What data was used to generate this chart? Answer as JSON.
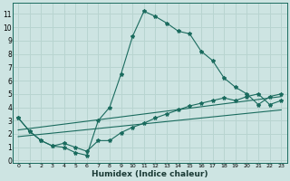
{
  "xlabel": "Humidex (Indice chaleur)",
  "bg_color": "#cde4e2",
  "grid_color": "#b8d4d0",
  "line_color": "#1a6b5e",
  "x_ticks": [
    0,
    1,
    2,
    3,
    4,
    5,
    6,
    7,
    8,
    9,
    10,
    11,
    12,
    13,
    14,
    15,
    16,
    17,
    18,
    19,
    20,
    21,
    22,
    23
  ],
  "y_ticks": [
    0,
    1,
    2,
    3,
    4,
    5,
    6,
    7,
    8,
    9,
    10,
    11
  ],
  "xlim": [
    -0.5,
    23.5
  ],
  "ylim": [
    -0.2,
    11.8
  ],
  "series1_x": [
    0,
    1,
    2,
    3,
    4,
    5,
    6,
    7,
    8,
    9,
    10,
    11,
    12,
    13,
    14,
    15,
    16,
    17,
    18,
    19,
    20,
    21,
    22,
    23
  ],
  "series1_y": [
    3.2,
    2.2,
    1.5,
    1.1,
    1.0,
    0.6,
    0.4,
    3.0,
    4.0,
    6.5,
    9.3,
    11.2,
    10.8,
    10.3,
    9.7,
    9.5,
    8.2,
    7.5,
    6.2,
    5.5,
    5.0,
    4.2,
    4.8,
    5.0
  ],
  "series2_x": [
    0,
    1,
    2,
    3,
    4,
    5,
    6,
    7,
    8,
    9,
    10,
    11,
    12,
    13,
    14,
    15,
    16,
    17,
    18,
    19,
    20,
    21,
    22,
    23
  ],
  "series2_y": [
    3.2,
    2.2,
    1.5,
    1.1,
    1.3,
    1.0,
    0.7,
    1.5,
    1.5,
    2.1,
    2.5,
    2.8,
    3.2,
    3.5,
    3.8,
    4.1,
    4.3,
    4.5,
    4.7,
    4.5,
    4.8,
    5.0,
    4.2,
    4.5
  ],
  "trend1_x": [
    0,
    23
  ],
  "trend1_y": [
    2.3,
    4.8
  ],
  "trend2_x": [
    0,
    23
  ],
  "trend2_y": [
    1.8,
    3.8
  ]
}
